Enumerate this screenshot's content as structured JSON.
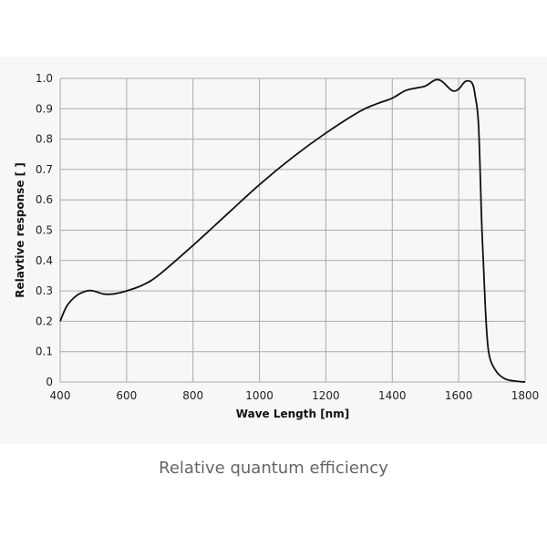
{
  "chart_data": {
    "type": "line",
    "xlabel": "Wave Length [nm]",
    "ylabel": "Relavtive response [ ]",
    "xlim": [
      400,
      1800
    ],
    "ylim": [
      0,
      1.0
    ],
    "xticks": [
      400,
      600,
      800,
      1000,
      1200,
      1400,
      1600,
      1800
    ],
    "yticks": [
      "0",
      "0.1",
      "0.2",
      "0.3",
      "0.4",
      "0.5",
      "0.6",
      "0.7",
      "0.8",
      "0.9",
      "1.0"
    ],
    "grid": true,
    "series": [
      {
        "color": "#111111",
        "x": [
          400,
          420,
          450,
          480,
          500,
          530,
          560,
          600,
          650,
          700,
          800,
          900,
          1000,
          1100,
          1200,
          1300,
          1350,
          1400,
          1440,
          1480,
          1500,
          1530,
          1550,
          1580,
          1600,
          1620,
          1640,
          1650,
          1660,
          1670,
          1680,
          1690,
          1710,
          1740,
          1780,
          1800
        ],
        "y": [
          0.2,
          0.25,
          0.285,
          0.3,
          0.3,
          0.29,
          0.29,
          0.3,
          0.32,
          0.355,
          0.45,
          0.55,
          0.65,
          0.74,
          0.82,
          0.89,
          0.915,
          0.935,
          0.96,
          0.97,
          0.975,
          0.995,
          0.99,
          0.96,
          0.965,
          0.99,
          0.985,
          0.94,
          0.84,
          0.5,
          0.25,
          0.1,
          0.04,
          0.01,
          0.002,
          0.0
        ]
      }
    ]
  },
  "caption": "Relative quantum efficiency"
}
